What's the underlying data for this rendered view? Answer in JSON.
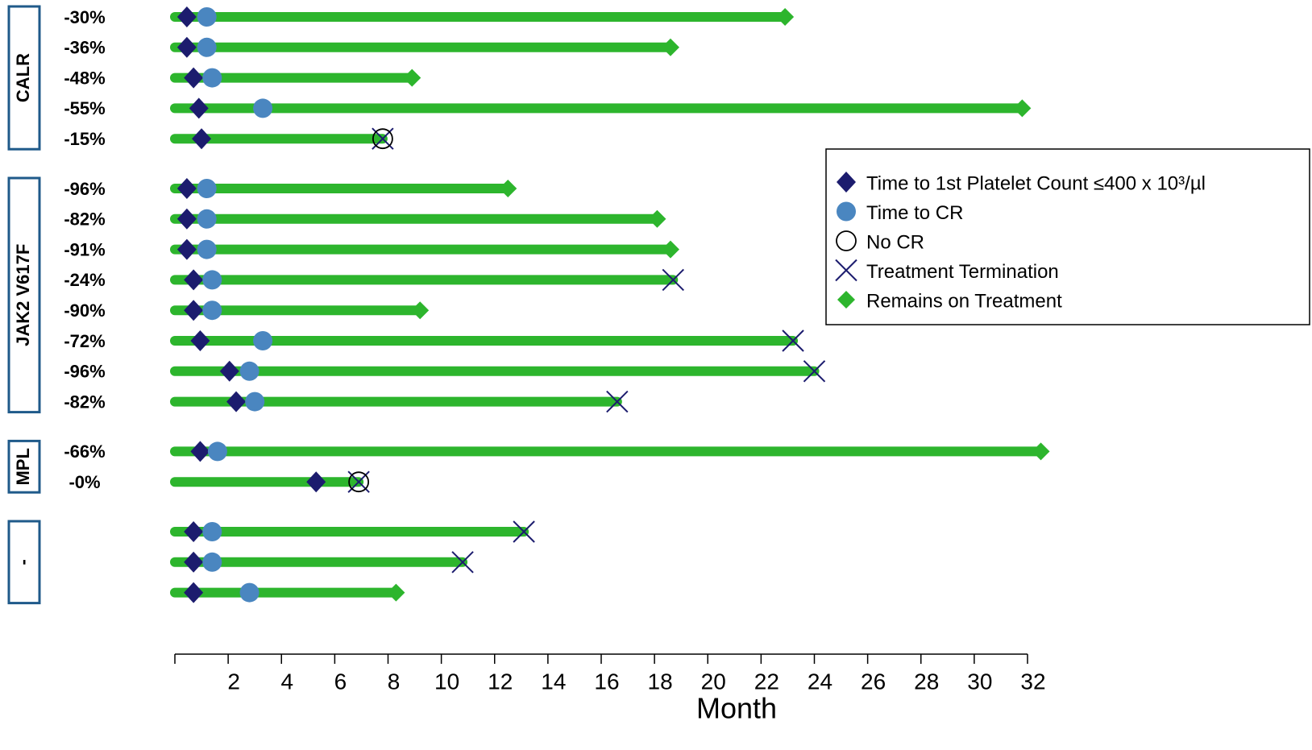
{
  "chart_data": {
    "type": "swimmer",
    "xlabel": "Month",
    "xlim": [
      0,
      32
    ],
    "xticks": [
      2,
      4,
      6,
      8,
      10,
      12,
      14,
      16,
      18,
      20,
      22,
      24,
      26,
      28,
      30,
      32
    ],
    "categories": [
      "-30%",
      "-36%",
      "-48%",
      "-55%",
      "-15%",
      "-96%",
      "-82%",
      "-91%",
      "-24%",
      "-90%",
      "-72%",
      "-96%",
      "-82%",
      "-66%",
      "-0%",
      null,
      null,
      null
    ],
    "group": [
      "CALR",
      "CALR",
      "CALR",
      "CALR",
      "CALR",
      "JAK2 V617F",
      "JAK2 V617F",
      "JAK2 V617F",
      "JAK2 V617F",
      "JAK2 V617F",
      "JAK2 V617F",
      "JAK2 V617F",
      "JAK2 V617F",
      "MPL",
      "MPL",
      "-",
      "-",
      "-"
    ],
    "bar_color": "#2db52d",
    "series": [
      {
        "name": "Time to 1st Platelet Count ≤400 x 10³/µl",
        "marker": "diamond",
        "color": "#1c1c6e",
        "values": [
          0.45,
          0.45,
          0.7,
          0.9,
          1.0,
          0.45,
          0.45,
          0.45,
          0.7,
          0.7,
          0.95,
          2.05,
          2.3,
          0.95,
          5.3,
          0.7,
          0.7,
          0.7
        ]
      },
      {
        "name": "Time to CR",
        "marker": "circle",
        "color": "#4a86c0",
        "values": [
          1.2,
          1.2,
          1.4,
          3.3,
          null,
          1.2,
          1.2,
          1.2,
          1.4,
          1.4,
          3.3,
          2.8,
          3.0,
          1.6,
          null,
          1.4,
          1.4,
          2.8
        ]
      },
      {
        "name": "No CR",
        "marker": "open-circle",
        "color": "#000000",
        "values": [
          null,
          null,
          null,
          null,
          7.8,
          null,
          null,
          null,
          null,
          null,
          null,
          null,
          null,
          null,
          6.9,
          null,
          null,
          null
        ]
      },
      {
        "name": "Treatment Termination",
        "marker": "x",
        "color": "#1c1c6e",
        "values": [
          null,
          null,
          null,
          null,
          7.8,
          null,
          null,
          null,
          18.7,
          null,
          23.2,
          24.0,
          16.6,
          null,
          6.9,
          13.1,
          10.8,
          null
        ]
      },
      {
        "name": "Remains on Treatment",
        "marker": "small-diamond",
        "color": "#2db52d",
        "values": [
          22.9,
          18.6,
          8.9,
          31.8,
          null,
          12.5,
          18.1,
          18.6,
          null,
          9.2,
          null,
          null,
          null,
          32.5,
          null,
          null,
          null,
          8.3
        ]
      }
    ]
  }
}
